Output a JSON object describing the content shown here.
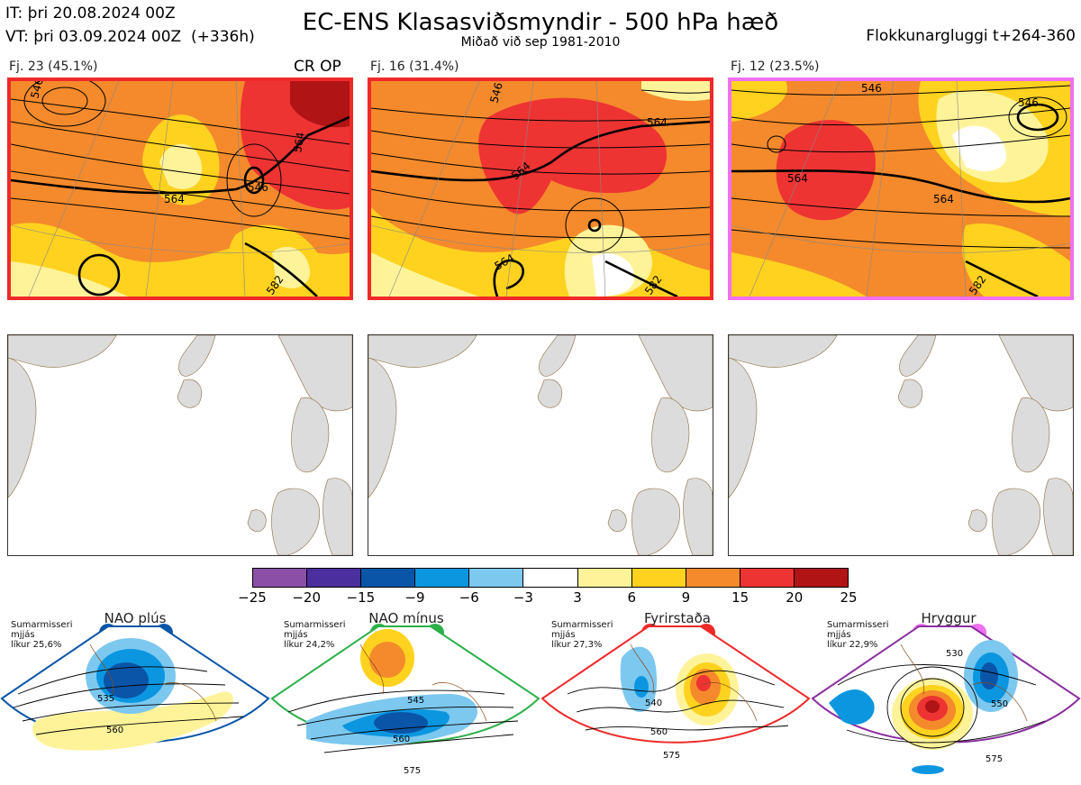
{
  "header": {
    "init_time": "IT: þri 20.08.2024 00Z",
    "valid_time": "VT: þri 03.09.2024 00Z  (+336h)",
    "title": "EC-ENS Klasasviðsmyndir - 500 hPa hæð",
    "subtitle": "Miðað við sep 1981-2010",
    "window": "Flokkunargluggi t+264-360"
  },
  "clusters": [
    {
      "label": "Fj. 23 (45.1%)",
      "extra": "CR OP",
      "border_color": "#ee2a2a",
      "contour_labels": [
        "546",
        "564",
        "546",
        "564",
        "582"
      ]
    },
    {
      "label": "Fj. 16 (31.4%)",
      "extra": "",
      "border_color": "#ee2a2a",
      "contour_labels": [
        "546",
        "564",
        "564",
        "564",
        "582"
      ]
    },
    {
      "label": "Fj. 12 (23.5%)",
      "extra": "",
      "border_color": "#f070f0",
      "contour_labels": [
        "546",
        "546",
        "564",
        "564",
        "582"
      ]
    }
  ],
  "legend": {
    "colors": [
      "#8b4fa8",
      "#4b2f9e",
      "#0a55a8",
      "#0c96e0",
      "#7cc8ef",
      "#ffffff",
      "#fff39a",
      "#ffd21f",
      "#f48a2c",
      "#ee3333",
      "#b01414"
    ],
    "ticks": [
      "−25",
      "−20",
      "−15",
      "−9",
      "−6",
      "−3",
      "3",
      "6",
      "9",
      "15",
      "20",
      "25"
    ]
  },
  "regimes": [
    {
      "name": "NAO plús",
      "info": [
        "Sumarmisseri",
        "mjjás",
        "líkur 25,6%"
      ],
      "color": "#0a55a8",
      "labels": [
        "535",
        "560"
      ]
    },
    {
      "name": "NAO mínus",
      "info": [
        "Sumarmisseri",
        "mjjás",
        "líkur 24,2%"
      ],
      "color": "#2db04a",
      "labels": [
        "545",
        "560",
        "575"
      ]
    },
    {
      "name": "Fyrirstaða",
      "info": [
        "Sumarmisseri",
        "mjjás",
        "líkur 27,3%"
      ],
      "color": "#ee2a2a",
      "labels": [
        "540",
        "560",
        "575"
      ]
    },
    {
      "name": "Hryggur",
      "info": [
        "Sumarmisseri",
        "mjjás",
        "líkur 22,9%"
      ],
      "color": "#f070f0",
      "labels": [
        "530",
        "550",
        "575"
      ]
    }
  ]
}
